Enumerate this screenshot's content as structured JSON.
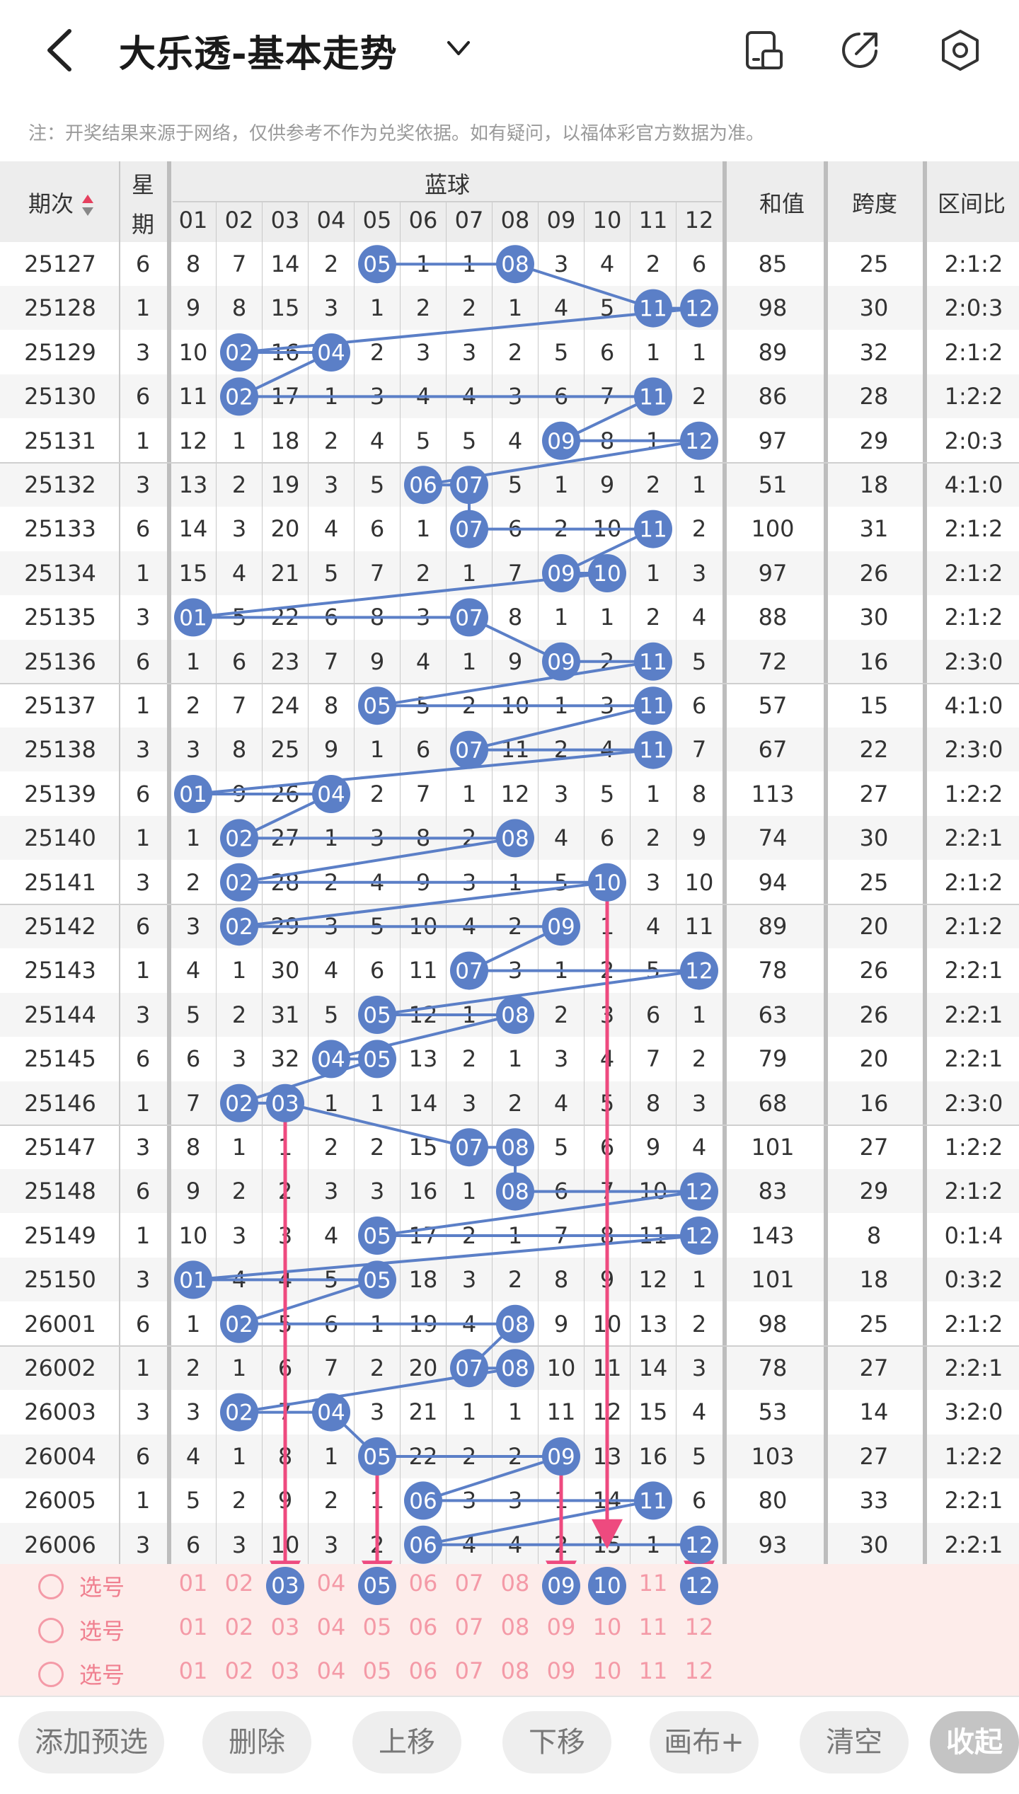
{
  "header": {
    "title": "大乐透-基本走势",
    "back_icon": "chevron-left-icon",
    "dropdown_icon": "chevron-down-icon",
    "icons": [
      "phone-rotate-icon",
      "share-icon",
      "settings-hexagon-icon"
    ]
  },
  "notice": "注：开奖结果来源于网络，仅供参考不作为兑奖依据。如有疑问，以福体彩官方数据为准。",
  "table": {
    "col_issue": "期次",
    "col_week_top": "星",
    "col_week_bottom": "期",
    "col_blue": "蓝球",
    "blue_numbers": [
      "01",
      "02",
      "03",
      "04",
      "05",
      "06",
      "07",
      "08",
      "09",
      "10",
      "11",
      "12"
    ],
    "col_sum": "和值",
    "col_span": "跨度",
    "col_ratio": "区间比",
    "rows": [
      {
        "issue": "25127",
        "week": "6",
        "cells": [
          "8",
          "7",
          "14",
          "2",
          "05",
          "1",
          "1",
          "08",
          "3",
          "4",
          "2",
          "6"
        ],
        "hits": [
          5,
          8
        ],
        "sum": "85",
        "span": "25",
        "ratio": "2:1:2"
      },
      {
        "issue": "25128",
        "week": "1",
        "cells": [
          "9",
          "8",
          "15",
          "3",
          "1",
          "2",
          "2",
          "1",
          "4",
          "5",
          "11",
          "12"
        ],
        "hits": [
          11,
          12
        ],
        "sum": "98",
        "span": "30",
        "ratio": "2:0:3"
      },
      {
        "issue": "25129",
        "week": "3",
        "cells": [
          "10",
          "02",
          "16",
          "04",
          "2",
          "3",
          "3",
          "2",
          "5",
          "6",
          "1",
          "1"
        ],
        "hits": [
          2,
          4
        ],
        "sum": "89",
        "span": "32",
        "ratio": "2:1:2"
      },
      {
        "issue": "25130",
        "week": "6",
        "cells": [
          "11",
          "02",
          "17",
          "1",
          "3",
          "4",
          "4",
          "3",
          "6",
          "7",
          "11",
          "2"
        ],
        "hits": [
          2,
          11
        ],
        "sum": "86",
        "span": "28",
        "ratio": "1:2:2"
      },
      {
        "issue": "25131",
        "week": "1",
        "cells": [
          "12",
          "1",
          "18",
          "2",
          "4",
          "5",
          "5",
          "4",
          "09",
          "8",
          "1",
          "12"
        ],
        "hits": [
          9,
          12
        ],
        "sum": "97",
        "span": "29",
        "ratio": "2:0:3"
      },
      {
        "issue": "25132",
        "week": "3",
        "cells": [
          "13",
          "2",
          "19",
          "3",
          "5",
          "06",
          "07",
          "5",
          "1",
          "9",
          "2",
          "1"
        ],
        "hits": [
          6,
          7
        ],
        "sum": "51",
        "span": "18",
        "ratio": "4:1:0"
      },
      {
        "issue": "25133",
        "week": "6",
        "cells": [
          "14",
          "3",
          "20",
          "4",
          "6",
          "1",
          "07",
          "6",
          "2",
          "10",
          "11",
          "2"
        ],
        "hits": [
          7,
          11
        ],
        "sum": "100",
        "span": "31",
        "ratio": "2:1:2"
      },
      {
        "issue": "25134",
        "week": "1",
        "cells": [
          "15",
          "4",
          "21",
          "5",
          "7",
          "2",
          "1",
          "7",
          "09",
          "10",
          "1",
          "3"
        ],
        "hits": [
          9,
          10
        ],
        "sum": "97",
        "span": "26",
        "ratio": "2:1:2"
      },
      {
        "issue": "25135",
        "week": "3",
        "cells": [
          "01",
          "5",
          "22",
          "6",
          "8",
          "3",
          "07",
          "8",
          "1",
          "1",
          "2",
          "4"
        ],
        "hits": [
          1,
          7
        ],
        "sum": "88",
        "span": "30",
        "ratio": "2:1:2"
      },
      {
        "issue": "25136",
        "week": "6",
        "cells": [
          "1",
          "6",
          "23",
          "7",
          "9",
          "4",
          "1",
          "9",
          "09",
          "2",
          "11",
          "5"
        ],
        "hits": [
          9,
          11
        ],
        "sum": "72",
        "span": "16",
        "ratio": "2:3:0"
      },
      {
        "issue": "25137",
        "week": "1",
        "cells": [
          "2",
          "7",
          "24",
          "8",
          "05",
          "5",
          "2",
          "10",
          "1",
          "3",
          "11",
          "6"
        ],
        "hits": [
          5,
          11
        ],
        "sum": "57",
        "span": "15",
        "ratio": "4:1:0"
      },
      {
        "issue": "25138",
        "week": "3",
        "cells": [
          "3",
          "8",
          "25",
          "9",
          "1",
          "6",
          "07",
          "11",
          "2",
          "4",
          "11",
          "7"
        ],
        "hits": [
          7,
          11
        ],
        "sum": "67",
        "span": "22",
        "ratio": "2:3:0"
      },
      {
        "issue": "25139",
        "week": "6",
        "cells": [
          "01",
          "9",
          "26",
          "04",
          "2",
          "7",
          "1",
          "12",
          "3",
          "5",
          "1",
          "8"
        ],
        "hits": [
          1,
          4
        ],
        "sum": "113",
        "span": "27",
        "ratio": "1:2:2"
      },
      {
        "issue": "25140",
        "week": "1",
        "cells": [
          "1",
          "02",
          "27",
          "1",
          "3",
          "8",
          "2",
          "08",
          "4",
          "6",
          "2",
          "9"
        ],
        "hits": [
          2,
          8
        ],
        "sum": "74",
        "span": "30",
        "ratio": "2:2:1"
      },
      {
        "issue": "25141",
        "week": "3",
        "cells": [
          "2",
          "02",
          "28",
          "2",
          "4",
          "9",
          "3",
          "1",
          "5",
          "10",
          "3",
          "10"
        ],
        "hits": [
          2,
          10
        ],
        "sum": "94",
        "span": "25",
        "ratio": "2:1:2"
      },
      {
        "issue": "25142",
        "week": "6",
        "cells": [
          "3",
          "02",
          "29",
          "3",
          "5",
          "10",
          "4",
          "2",
          "09",
          "1",
          "4",
          "11"
        ],
        "hits": [
          2,
          9
        ],
        "sum": "89",
        "span": "20",
        "ratio": "2:1:2"
      },
      {
        "issue": "25143",
        "week": "1",
        "cells": [
          "4",
          "1",
          "30",
          "4",
          "6",
          "11",
          "07",
          "3",
          "1",
          "2",
          "5",
          "12"
        ],
        "hits": [
          7,
          12
        ],
        "sum": "78",
        "span": "26",
        "ratio": "2:2:1"
      },
      {
        "issue": "25144",
        "week": "3",
        "cells": [
          "5",
          "2",
          "31",
          "5",
          "05",
          "12",
          "1",
          "08",
          "2",
          "3",
          "6",
          "1"
        ],
        "hits": [
          5,
          8
        ],
        "sum": "63",
        "span": "26",
        "ratio": "2:2:1"
      },
      {
        "issue": "25145",
        "week": "6",
        "cells": [
          "6",
          "3",
          "32",
          "04",
          "05",
          "13",
          "2",
          "1",
          "3",
          "4",
          "7",
          "2"
        ],
        "hits": [
          4,
          5
        ],
        "sum": "79",
        "span": "20",
        "ratio": "2:2:1"
      },
      {
        "issue": "25146",
        "week": "1",
        "cells": [
          "7",
          "02",
          "03",
          "1",
          "1",
          "14",
          "3",
          "2",
          "4",
          "5",
          "8",
          "3"
        ],
        "hits": [
          2,
          3
        ],
        "sum": "68",
        "span": "16",
        "ratio": "2:3:0"
      },
      {
        "issue": "25147",
        "week": "3",
        "cells": [
          "8",
          "1",
          "1",
          "2",
          "2",
          "15",
          "07",
          "08",
          "5",
          "6",
          "9",
          "4"
        ],
        "hits": [
          7,
          8
        ],
        "sum": "101",
        "span": "27",
        "ratio": "1:2:2"
      },
      {
        "issue": "25148",
        "week": "6",
        "cells": [
          "9",
          "2",
          "2",
          "3",
          "3",
          "16",
          "1",
          "08",
          "6",
          "7",
          "10",
          "12"
        ],
        "hits": [
          8,
          12
        ],
        "sum": "83",
        "span": "29",
        "ratio": "2:1:2"
      },
      {
        "issue": "25149",
        "week": "1",
        "cells": [
          "10",
          "3",
          "3",
          "4",
          "05",
          "17",
          "2",
          "1",
          "7",
          "8",
          "11",
          "12"
        ],
        "hits": [
          5,
          12
        ],
        "sum": "143",
        "span": "8",
        "ratio": "0:1:4"
      },
      {
        "issue": "25150",
        "week": "3",
        "cells": [
          "01",
          "4",
          "4",
          "5",
          "05",
          "18",
          "3",
          "2",
          "8",
          "9",
          "12",
          "1"
        ],
        "hits": [
          1,
          5
        ],
        "sum": "101",
        "span": "18",
        "ratio": "0:3:2"
      },
      {
        "issue": "26001",
        "week": "6",
        "cells": [
          "1",
          "02",
          "5",
          "6",
          "1",
          "19",
          "4",
          "08",
          "9",
          "10",
          "13",
          "2"
        ],
        "hits": [
          2,
          8
        ],
        "sum": "98",
        "span": "25",
        "ratio": "2:1:2"
      },
      {
        "issue": "26002",
        "week": "1",
        "cells": [
          "2",
          "1",
          "6",
          "7",
          "2",
          "20",
          "07",
          "08",
          "10",
          "11",
          "14",
          "3"
        ],
        "hits": [
          7,
          8
        ],
        "sum": "78",
        "span": "27",
        "ratio": "2:2:1"
      },
      {
        "issue": "26003",
        "week": "3",
        "cells": [
          "3",
          "02",
          "7",
          "04",
          "3",
          "21",
          "1",
          "1",
          "11",
          "12",
          "15",
          "4"
        ],
        "hits": [
          2,
          4
        ],
        "sum": "53",
        "span": "14",
        "ratio": "3:2:0"
      },
      {
        "issue": "26004",
        "week": "6",
        "cells": [
          "4",
          "1",
          "8",
          "1",
          "05",
          "22",
          "2",
          "2",
          "09",
          "13",
          "16",
          "5"
        ],
        "hits": [
          5,
          9
        ],
        "sum": "103",
        "span": "27",
        "ratio": "1:2:2"
      },
      {
        "issue": "26005",
        "week": "1",
        "cells": [
          "5",
          "2",
          "9",
          "2",
          "1",
          "06",
          "3",
          "3",
          "1",
          "14",
          "11",
          "6"
        ],
        "hits": [
          6,
          11
        ],
        "sum": "80",
        "span": "33",
        "ratio": "2:2:1"
      },
      {
        "issue": "26006",
        "week": "3",
        "cells": [
          "6",
          "3",
          "10",
          "3",
          "2",
          "06",
          "4",
          "4",
          "2",
          "15",
          "1",
          "12"
        ],
        "hits": [
          6,
          12
        ],
        "sum": "93",
        "span": "30",
        "ratio": "2:2:1"
      }
    ]
  },
  "select_rows": [
    {
      "label": "选号",
      "picked": [
        3,
        5,
        9,
        10,
        12
      ]
    },
    {
      "label": "选号",
      "picked": []
    },
    {
      "label": "选号",
      "picked": []
    }
  ],
  "buttons": [
    "添加预选",
    "删除",
    "上移",
    "下移",
    "画布+",
    "清空",
    "收起"
  ],
  "colors": {
    "ball": "#5b7fc7",
    "arrow": "#ee4a7f",
    "select_bg": "#fdecea",
    "select_text": "#f49aa7"
  }
}
